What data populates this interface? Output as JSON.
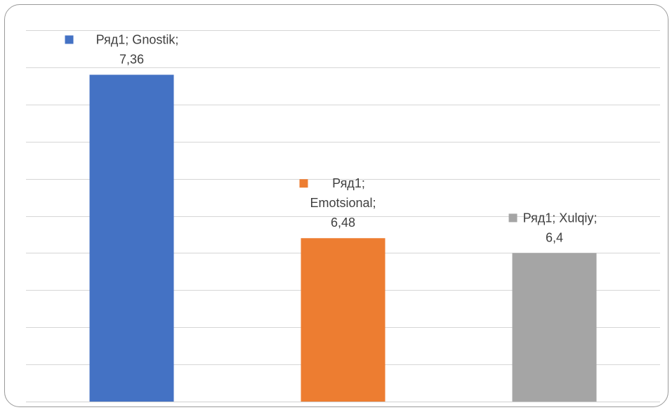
{
  "chart_data": {
    "type": "bar",
    "categories": [
      "Gnostik",
      "Emotsional",
      "Xulqiy"
    ],
    "series": [
      {
        "name": "Ряд1",
        "values": [
          7.36,
          6.48,
          6.4
        ]
      }
    ],
    "colors": [
      "#4472c4",
      "#ed7d31",
      "#a5a5a5"
    ],
    "data_labels": [
      [
        "Ряд1; Gnostik;",
        "7,36"
      ],
      [
        "Ряд1;",
        "Emotsional;",
        "6,48"
      ],
      [
        "Ряд1; Xulqiy;",
        "6,4"
      ]
    ],
    "ylim": [
      5.6,
      7.6
    ],
    "grid": true,
    "legend": "none"
  }
}
